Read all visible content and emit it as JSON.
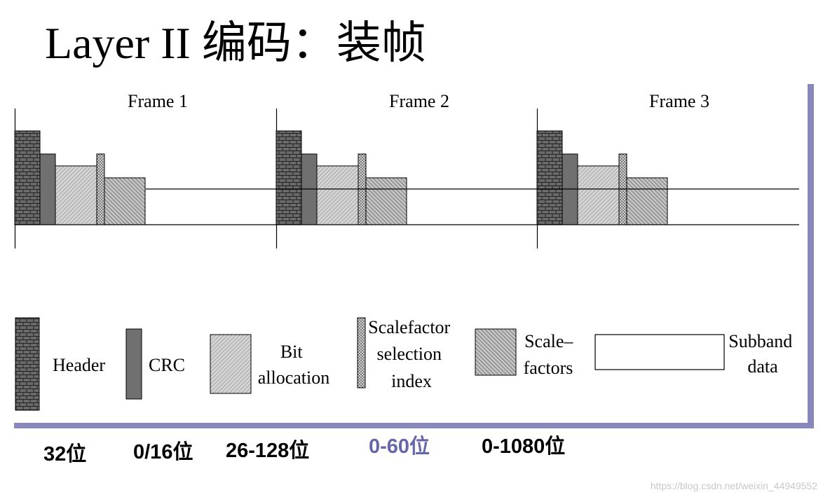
{
  "title": "Layer II 编码：装帧",
  "frames": [
    "Frame 1",
    "Frame 2",
    "Frame 3"
  ],
  "legend": {
    "header": "Header",
    "crc": "CRC",
    "bit_allocation": [
      "Bit",
      "allocation"
    ],
    "scalefactor_selection_index": [
      "Scalefactor",
      "selection",
      "index"
    ],
    "scale_factors": [
      "Scale–",
      "factors"
    ],
    "subband_data": [
      "Subband",
      "data"
    ]
  },
  "bit_sizes": {
    "header": "32位",
    "crc": "0/16位",
    "bit_allocation": "26-128位",
    "scfsi": "0-60位",
    "scale_factors": "0-1080位"
  },
  "colors": {
    "scfsi_label": "#6666aa",
    "shadow": "#8888bb",
    "block_gray": "#707070"
  },
  "watermark": "https://blog.csdn.net/weixin_44949552"
}
